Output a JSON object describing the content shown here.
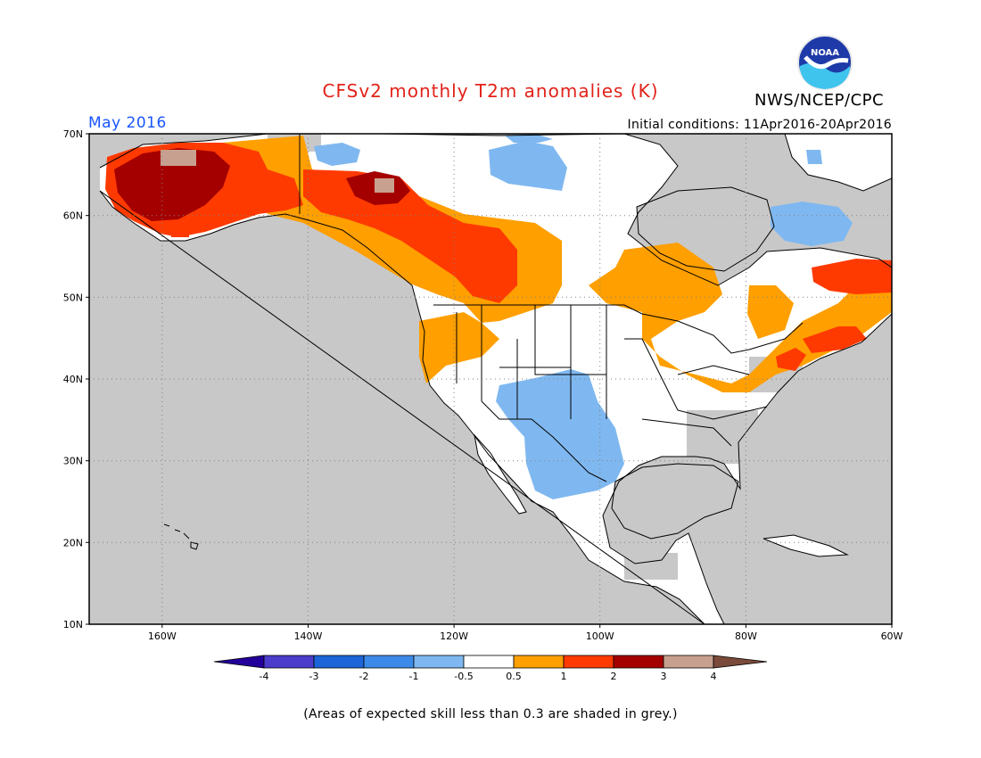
{
  "title": "CFSv2 monthly T2m anomalies (K)",
  "agency": "NWS/NCEP/CPC",
  "logo_text": "NOAA",
  "forecast_month": "May 2016",
  "initial_conditions": "Initial conditions: 11Apr2016-20Apr2016",
  "footnote": "(Areas of expected skill less than 0.3 are shaded in grey.)",
  "map": {
    "lon_range": [
      -170,
      -60
    ],
    "lat_range": [
      10,
      70
    ],
    "lon_ticks": [
      "160W",
      "140W",
      "120W",
      "100W",
      "80W",
      "60W"
    ],
    "lat_ticks": [
      "70N",
      "60N",
      "50N",
      "40N",
      "30N",
      "20N",
      "10N"
    ],
    "colors": {
      "low_skill": "#c8c8c8",
      "neutral": "#ffffff",
      "cool_-1_-0.5": "#7fb8f0",
      "warm_0.5_1": "#ff9f00",
      "warm_1_2": "#ff3a00",
      "warm_2_3": "#a50000",
      "warm_3_4": "#c8a090"
    }
  },
  "colorbar": {
    "labels": [
      "-4",
      "-3",
      "-2",
      "-1",
      "-0.5",
      "0.5",
      "1",
      "2",
      "3",
      "4"
    ],
    "colors": [
      "#24009a",
      "#4b3ccb",
      "#1d64d8",
      "#3c8ae8",
      "#7fb8f0",
      "#ffffff",
      "#ff9f00",
      "#ff3a00",
      "#a50000",
      "#c8a090",
      "#7a4a3a"
    ]
  }
}
